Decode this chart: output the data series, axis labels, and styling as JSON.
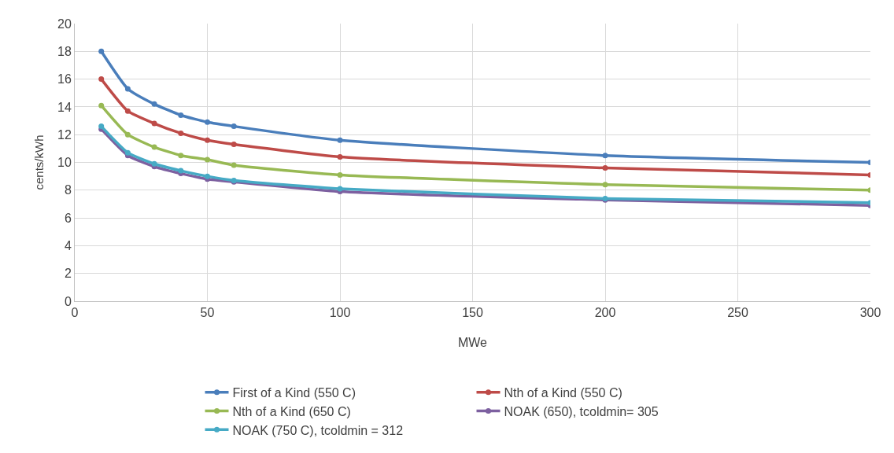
{
  "chart_data": {
    "type": "line",
    "xlabel": "MWe",
    "ylabel": "cents/kWh",
    "x": [
      10,
      20,
      30,
      40,
      50,
      60,
      100,
      200,
      300
    ],
    "xlim": [
      0,
      300
    ],
    "xticks": [
      0,
      50,
      100,
      150,
      200,
      250,
      300
    ],
    "ylim": [
      0,
      20
    ],
    "yticks": [
      0,
      2,
      4,
      6,
      8,
      10,
      12,
      14,
      16,
      18,
      20
    ],
    "grid": true,
    "legend": "bottom",
    "marker": "circle",
    "line_style": "solid",
    "series": [
      {
        "name": "First of a Kind (550 C)",
        "color": "#4a7ebb",
        "values": [
          18,
          15.3,
          14.2,
          13.4,
          12.9,
          12.6,
          11.6,
          10.5,
          10.0
        ]
      },
      {
        "name": "Nth of a Kind (550 C)",
        "color": "#be4b48",
        "values": [
          16,
          13.7,
          12.8,
          12.1,
          11.6,
          11.3,
          10.4,
          9.6,
          9.1
        ]
      },
      {
        "name": "Nth of a Kind (650 C)",
        "color": "#98b954",
        "values": [
          14.1,
          12.0,
          11.1,
          10.5,
          10.2,
          9.8,
          9.1,
          8.4,
          8.0
        ]
      },
      {
        "name": "NOAK (650), tcoldmin= 305",
        "color": "#7d60a0",
        "values": [
          12.4,
          10.5,
          9.7,
          9.2,
          8.8,
          8.6,
          7.9,
          7.3,
          6.9
        ]
      },
      {
        "name": "NOAK (750 C), tcoldmin = 312",
        "color": "#46aac5",
        "values": [
          12.6,
          10.7,
          9.9,
          9.4,
          9.0,
          8.7,
          8.1,
          7.4,
          7.1
        ]
      }
    ]
  }
}
